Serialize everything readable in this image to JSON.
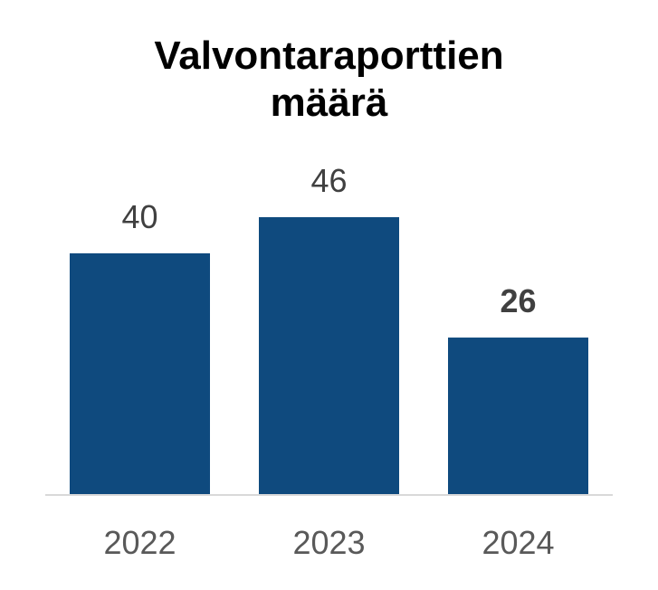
{
  "chart_data": {
    "type": "bar",
    "title_lines": [
      "Valvontaraporttien",
      "määrä"
    ],
    "categories": [
      "2022",
      "2023",
      "2024"
    ],
    "values": [
      40,
      46,
      26
    ],
    "data_labels": [
      "40",
      "46",
      "26"
    ],
    "highlighted_label_index": 2,
    "ylim": [
      0,
      46
    ],
    "grid": false,
    "legend": "none",
    "bar_color": "#0f4a7e",
    "baseline_color": "#d9d9d9"
  }
}
